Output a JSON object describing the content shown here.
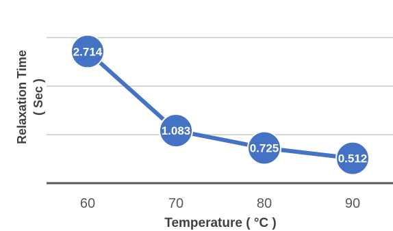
{
  "chart_data": {
    "type": "line",
    "categories": [
      "60",
      "70",
      "80",
      "90"
    ],
    "series": [
      {
        "values": [
          2.714,
          1.083,
          0.725,
          0.512
        ],
        "labels": [
          "2.714",
          "1.083",
          "0.725",
          "0.512"
        ]
      }
    ],
    "xlabel": "Temperature ( °C )",
    "ylabel_line1": "Relaxation Time",
    "ylabel_line2": "( Sec )",
    "ylim": [
      0,
      3
    ],
    "grid": true,
    "colors": {
      "series": "#4472c4",
      "grid": "#c8c8c8",
      "axis": "#595959"
    }
  }
}
